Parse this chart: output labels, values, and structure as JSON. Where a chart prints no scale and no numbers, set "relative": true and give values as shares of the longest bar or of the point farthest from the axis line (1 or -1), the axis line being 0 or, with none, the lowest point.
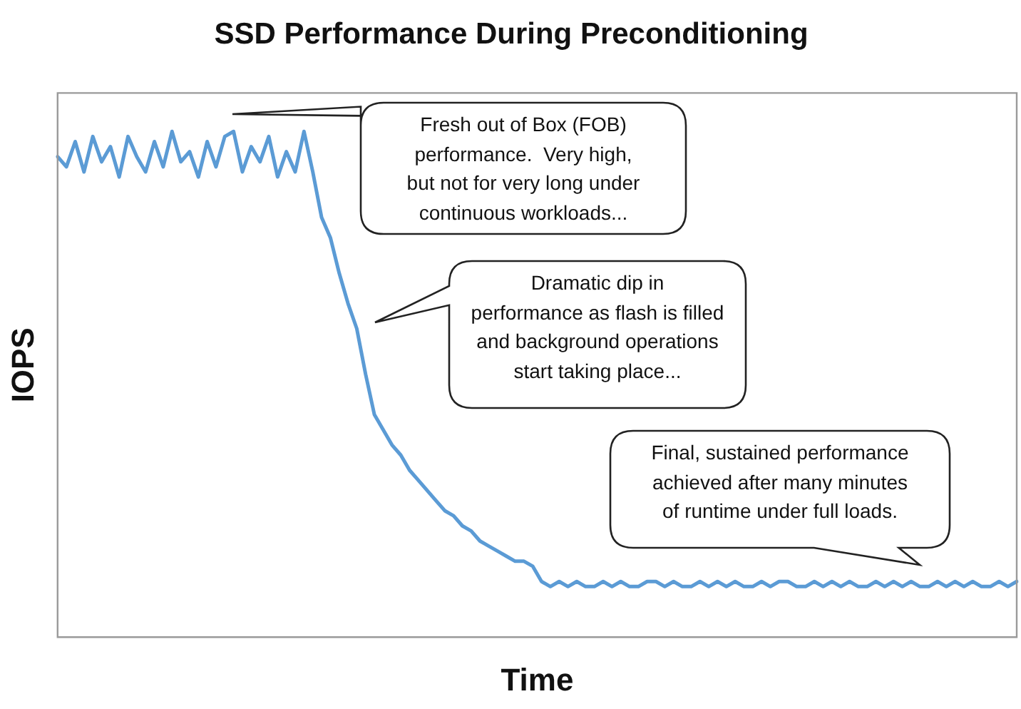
{
  "chart_data": {
    "type": "line",
    "title": "SSD Performance During Preconditioning",
    "xlabel": "Time",
    "ylabel": "IOPS",
    "relative": true,
    "marker": "none",
    "grid": false,
    "legend": false,
    "categories": [
      null,
      null,
      null,
      null,
      null,
      null,
      null,
      null,
      null,
      null,
      null,
      null,
      null,
      null,
      null,
      null,
      null,
      null,
      null,
      null,
      null,
      null,
      null,
      null,
      null,
      null,
      null,
      null,
      null,
      null,
      null,
      null,
      null,
      null,
      null,
      null,
      null,
      null,
      null,
      null,
      null,
      null,
      null,
      null,
      null,
      null,
      null,
      null,
      null,
      null,
      null,
      null,
      null,
      null,
      null,
      null,
      null,
      null,
      null,
      null,
      null,
      null,
      null,
      null,
      null,
      null,
      null,
      null,
      null,
      null,
      null,
      null,
      null,
      null,
      null,
      null,
      null,
      null,
      null,
      null,
      null,
      null,
      null,
      null,
      null,
      null,
      null,
      null,
      null,
      null,
      null,
      null,
      null,
      null,
      null,
      null,
      null,
      null,
      null,
      null,
      null,
      null,
      null,
      null,
      null,
      null,
      null,
      null,
      null,
      null
    ],
    "series": [
      {
        "color": "#5b9bd5",
        "values": [
          0.95,
          0.93,
          0.98,
          0.92,
          0.99,
          0.94,
          0.97,
          0.91,
          0.99,
          0.95,
          0.92,
          0.98,
          0.93,
          1.0,
          0.94,
          0.96,
          0.91,
          0.98,
          0.93,
          0.99,
          1.0,
          0.92,
          0.97,
          0.94,
          0.99,
          0.91,
          0.96,
          0.92,
          1.0,
          0.92,
          0.83,
          0.79,
          0.72,
          0.66,
          0.61,
          0.52,
          0.44,
          0.41,
          0.38,
          0.36,
          0.33,
          0.31,
          0.29,
          0.27,
          0.25,
          0.24,
          0.22,
          0.21,
          0.19,
          0.18,
          0.17,
          0.16,
          0.15,
          0.15,
          0.14,
          0.11,
          0.1,
          0.11,
          0.1,
          0.11,
          0.1,
          0.1,
          0.11,
          0.1,
          0.11,
          0.1,
          0.1,
          0.11,
          0.11,
          0.1,
          0.11,
          0.1,
          0.1,
          0.11,
          0.1,
          0.11,
          0.1,
          0.11,
          0.1,
          0.1,
          0.11,
          0.1,
          0.11,
          0.11,
          0.1,
          0.1,
          0.11,
          0.1,
          0.11,
          0.1,
          0.11,
          0.1,
          0.1,
          0.11,
          0.1,
          0.11,
          0.1,
          0.11,
          0.1,
          0.1,
          0.11,
          0.1,
          0.11,
          0.1,
          0.11,
          0.1,
          0.1,
          0.11,
          0.1,
          0.11
        ]
      }
    ],
    "annotations": [
      "Fresh out of Box (FOB)\nperformance.  Very high,\nbut not for very long under\ncontinuous workloads...",
      "Dramatic dip in\nperformance as flash is filled\nand background operations\nstart taking place...",
      "Final, sustained performance\nachieved after many minutes\nof runtime under full loads."
    ]
  }
}
